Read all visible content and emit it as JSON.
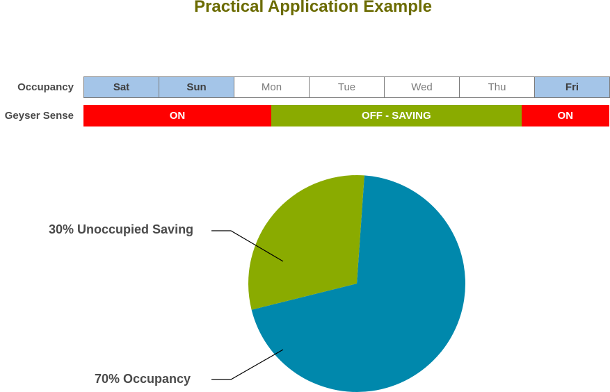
{
  "title": "Practical Application Example",
  "rows": {
    "occupancy_label": "Occupancy",
    "geyser_label": "Geyser Sense"
  },
  "days": [
    {
      "label": "Sat",
      "occupied": true
    },
    {
      "label": "Sun",
      "occupied": true
    },
    {
      "label": "Mon",
      "occupied": false
    },
    {
      "label": "Tue",
      "occupied": false
    },
    {
      "label": "Wed",
      "occupied": false
    },
    {
      "label": "Thu",
      "occupied": false
    },
    {
      "label": "Fri",
      "occupied": true
    }
  ],
  "geyser": [
    {
      "label": "ON",
      "state": "on",
      "days": 2.5
    },
    {
      "label": "OFF - SAVING",
      "state": "off",
      "days": 3.33
    },
    {
      "label": "ON",
      "state": "on",
      "days": 1.17
    }
  ],
  "colors": {
    "title": "#6b6b00",
    "occupied": "#a4c5e8",
    "on": "#ff0000",
    "off": "#8aab00",
    "pie_occupancy": "#0088ac",
    "pie_saving": "#8aab00"
  },
  "chart_data": {
    "type": "pie",
    "slices": [
      {
        "label": "30% Unoccupied Saving",
        "value": 30
      },
      {
        "label": "70% Occupancy",
        "value": 70
      }
    ]
  }
}
